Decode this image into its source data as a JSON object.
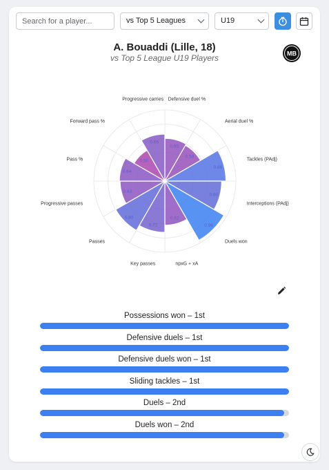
{
  "search": {
    "placeholder": "Search for a player..."
  },
  "filters": {
    "comparison": "vs Top 5 Leagues",
    "age_group": "U19"
  },
  "icons": {
    "timer": "stopwatch-icon",
    "calendar": "calendar-icon",
    "edit": "pencil-icon",
    "theme": "moon-icon",
    "logo": "mb-logo"
  },
  "colors": {
    "accent": "#3b8ee0",
    "bar_fill": "#3b7ff0",
    "track": "#d6d9de"
  },
  "player": {
    "title": "A. Bouaddi (Lille, 18)",
    "subtitle": "vs Top 5 League U19 Players",
    "logo_text": "MB"
  },
  "chart_data": {
    "type": "radar",
    "range": [
      0,
      1
    ],
    "metrics": [
      {
        "label": "Defensive duel %",
        "value": 0.6,
        "value_label": "0.60"
      },
      {
        "label": "Aerial duel %",
        "value": 0.58,
        "value_label": "0.58"
      },
      {
        "label": "Tackles (PAdj)",
        "value": 0.86,
        "value_label": "0.86"
      },
      {
        "label": "Interceptions (PAdj)",
        "value": 0.8,
        "value_label": "0.80"
      },
      {
        "label": "Duels won",
        "value": 0.96,
        "value_label": "0.96"
      },
      {
        "label": "npxG + xA",
        "value": 0.62,
        "value_label": "0.62"
      },
      {
        "label": "Key passes",
        "value": 0.72,
        "value_label": "0.72"
      },
      {
        "label": "Passes",
        "value": 0.8,
        "value_label": "0.80"
      },
      {
        "label": "Progressive passes",
        "value": 0.63,
        "value_label": "0.63"
      },
      {
        "label": "Pass %",
        "value": 0.64,
        "value_label": "0.64"
      },
      {
        "label": "Forward pass %",
        "value": 0.5,
        "value_label": "0.50"
      },
      {
        "label": "Progressive carries",
        "value": 0.66,
        "value_label": "0.66"
      }
    ]
  },
  "rankings": [
    {
      "label": "Possessions won – 1st",
      "value": 1.0
    },
    {
      "label": "Defensive duels – 1st",
      "value": 1.0
    },
    {
      "label": "Defensive duels won – 1st",
      "value": 1.0
    },
    {
      "label": "Sliding tackles – 1st",
      "value": 1.0
    },
    {
      "label": "Duels – 2nd",
      "value": 0.98
    },
    {
      "label": "Duels won – 2nd",
      "value": 0.98
    }
  ]
}
